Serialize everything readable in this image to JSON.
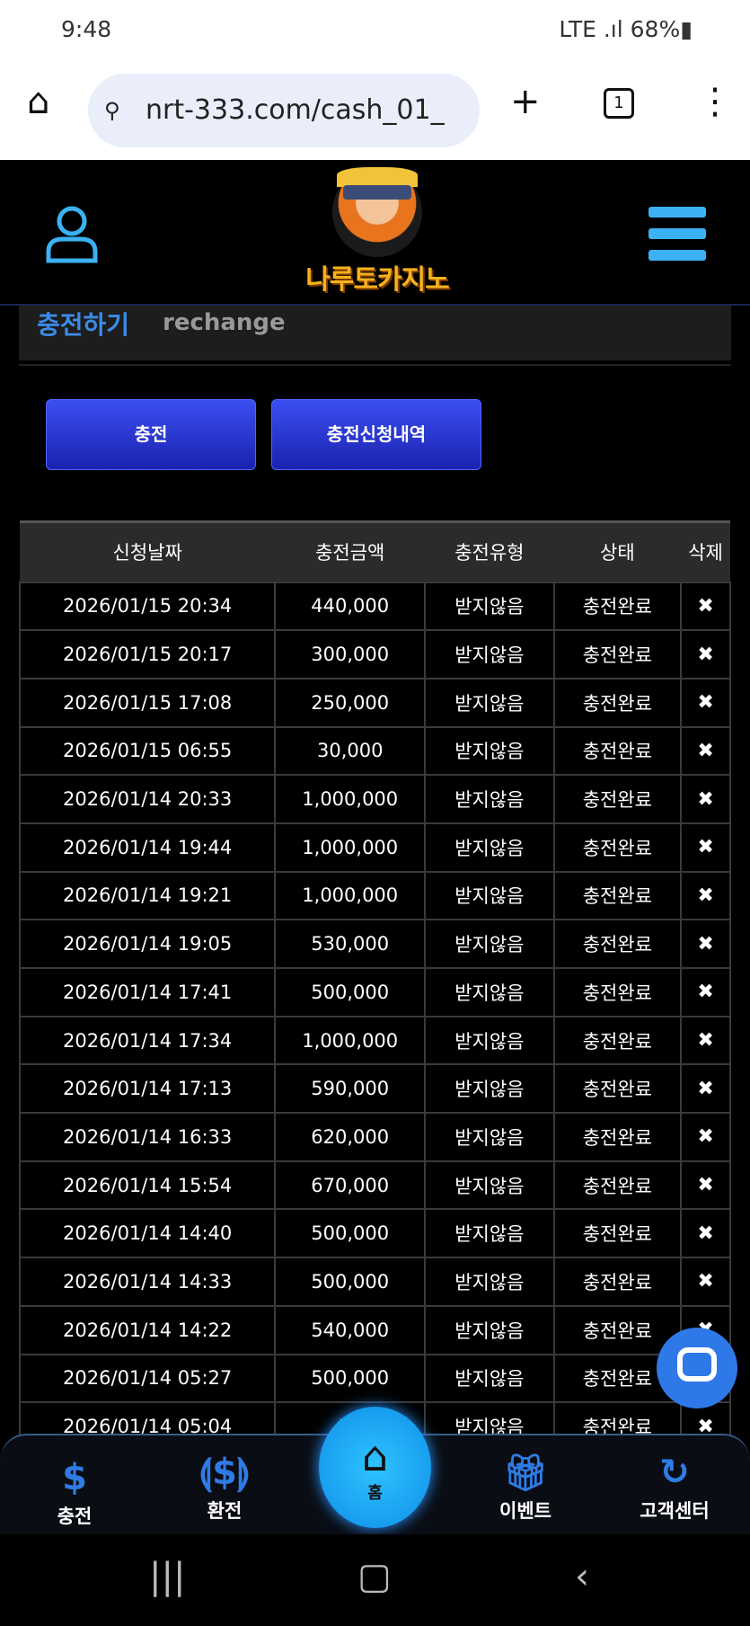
{
  "status": {
    "time": "9:48",
    "battery": "68%",
    "network": "LTE"
  },
  "browser": {
    "url": "nrt-333.com/cash_01_",
    "tab_count": "1"
  },
  "header": {
    "logo_text": "나루토카지노"
  },
  "section": {
    "title_ko": "충전하기",
    "title_en": "rechange"
  },
  "buttons": {
    "charge": "충전",
    "history": "충전신청내역"
  },
  "table": {
    "headers": [
      "신청날짜",
      "충전금액",
      "충전유형",
      "상태",
      "삭제"
    ],
    "rows": [
      [
        "2026/01/15 20:34",
        "440,000",
        "받지않음",
        "충전완료"
      ],
      [
        "2026/01/15 20:17",
        "300,000",
        "받지않음",
        "충전완료"
      ],
      [
        "2026/01/15 17:08",
        "250,000",
        "받지않음",
        "충전완료"
      ],
      [
        "2026/01/15 06:55",
        "30,000",
        "받지않음",
        "충전완료"
      ],
      [
        "2026/01/14 20:33",
        "1,000,000",
        "받지않음",
        "충전완료"
      ],
      [
        "2026/01/14 19:44",
        "1,000,000",
        "받지않음",
        "충전완료"
      ],
      [
        "2026/01/14 19:21",
        "1,000,000",
        "받지않음",
        "충전완료"
      ],
      [
        "2026/01/14 19:05",
        "530,000",
        "받지않음",
        "충전완료"
      ],
      [
        "2026/01/14 17:41",
        "500,000",
        "받지않음",
        "충전완료"
      ],
      [
        "2026/01/14 17:34",
        "1,000,000",
        "받지않음",
        "충전완료"
      ],
      [
        "2026/01/14 17:13",
        "590,000",
        "받지않음",
        "충전완료"
      ],
      [
        "2026/01/14 16:33",
        "620,000",
        "받지않음",
        "충전완료"
      ],
      [
        "2026/01/14 15:54",
        "670,000",
        "받지않음",
        "충전완료"
      ],
      [
        "2026/01/14 14:40",
        "500,000",
        "받지않음",
        "충전완료"
      ],
      [
        "2026/01/14 14:33",
        "500,000",
        "받지않음",
        "충전완료"
      ],
      [
        "2026/01/14 14:22",
        "540,000",
        "받지않음",
        "충전완료"
      ],
      [
        "2026/01/14 05:27",
        "500,000",
        "받지않음",
        "충전완료"
      ],
      [
        "2026/01/14 05:04",
        "50",
        "받지않음",
        "충전완료"
      ]
    ],
    "delete_symbol": "✖"
  },
  "bottom_nav": [
    {
      "label": "충전",
      "icon": "charge-hand-dollar-icon"
    },
    {
      "label": "환전",
      "icon": "exchange-hands-dollar-icon"
    },
    {
      "label": "홈",
      "icon": "home-icon"
    },
    {
      "label": "이벤트",
      "icon": "gift-icon"
    },
    {
      "label": "고객센터",
      "icon": "support-24-icon"
    }
  ],
  "colors": {
    "accent": "#3cb2f4",
    "button": "#2a35d0",
    "title": "#3b8be8"
  }
}
